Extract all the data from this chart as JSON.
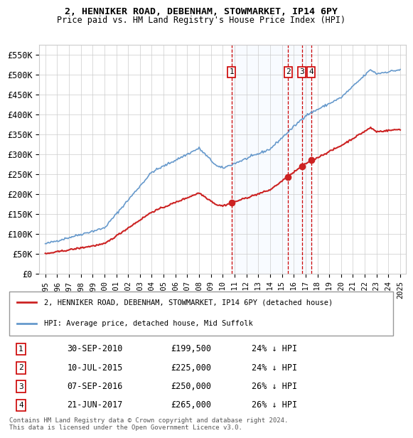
{
  "title": "2, HENNIKER ROAD, DEBENHAM, STOWMARKET, IP14 6PY",
  "subtitle": "Price paid vs. HM Land Registry's House Price Index (HPI)",
  "xlabel": "",
  "ylabel": "",
  "ylim": [
    0,
    575000
  ],
  "yticks": [
    0,
    50000,
    100000,
    150000,
    200000,
    250000,
    300000,
    350000,
    400000,
    450000,
    500000,
    550000
  ],
  "ytick_labels": [
    "£0",
    "£50K",
    "£100K",
    "£150K",
    "£200K",
    "£250K",
    "£300K",
    "£350K",
    "£400K",
    "£450K",
    "£500K",
    "£550K"
  ],
  "hpi_color": "#6699cc",
  "price_color": "#cc2222",
  "vline_color": "#cc0000",
  "shade_color": "#ddeeff",
  "transactions": [
    {
      "date": 2010.75,
      "price": 199500,
      "label": "1"
    },
    {
      "date": 2015.52,
      "price": 225000,
      "label": "2"
    },
    {
      "date": 2016.69,
      "price": 250000,
      "label": "3"
    },
    {
      "date": 2017.47,
      "price": 265000,
      "label": "4"
    }
  ],
  "transaction_table": [
    {
      "num": "1",
      "date": "30-SEP-2010",
      "price": "£199,500",
      "pct": "24% ↓ HPI"
    },
    {
      "num": "2",
      "date": "10-JUL-2015",
      "price": "£225,000",
      "pct": "24% ↓ HPI"
    },
    {
      "num": "3",
      "date": "07-SEP-2016",
      "price": "£250,000",
      "pct": "26% ↓ HPI"
    },
    {
      "num": "4",
      "date": "21-JUN-2017",
      "price": "£265,000",
      "pct": "26% ↓ HPI"
    }
  ],
  "legend_entries": [
    "2, HENNIKER ROAD, DEBENHAM, STOWMARKET, IP14 6PY (detached house)",
    "HPI: Average price, detached house, Mid Suffolk"
  ],
  "footer": "Contains HM Land Registry data © Crown copyright and database right 2024.\nThis data is licensed under the Open Government Licence v3.0.",
  "background_color": "#ffffff",
  "grid_color": "#cccccc"
}
